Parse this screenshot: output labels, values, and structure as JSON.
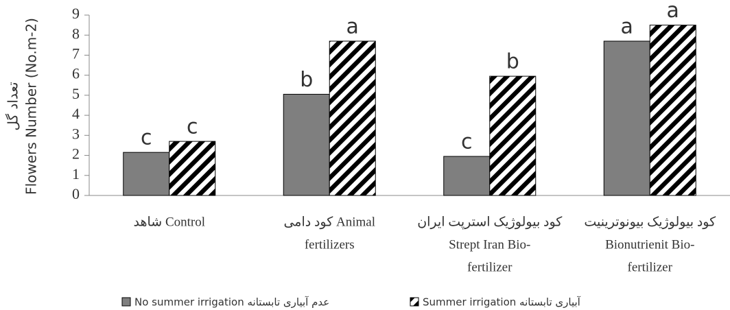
{
  "chart_data": {
    "type": "bar",
    "ylabel": [
      "تعداد گل",
      "Flowers Number (No.m-2)"
    ],
    "categories": [
      [
        "شاهد Control"
      ],
      [
        "کود دامی  Animal",
        "fertilizers"
      ],
      [
        "کود بیولوژیک استرپت ایران",
        "Strept Iran Bio-",
        "fertilizer"
      ],
      [
        "کود بیولوژیک بیونوترینیت",
        "Bionutrienit Bio-",
        "fertilizer"
      ]
    ],
    "series": [
      {
        "name": "No summer irrigation عدم آبیاری تابستانه",
        "color": "#7f7f7f",
        "pattern": "solid",
        "values": [
          2.15,
          5.05,
          1.95,
          7.7
        ],
        "letters": [
          "c",
          "b",
          "c",
          "a"
        ]
      },
      {
        "name": "Summer irrigation آبیاری تابستانه",
        "color": "#000000",
        "pattern": "diagonal",
        "values": [
          2.7,
          7.7,
          5.95,
          8.5
        ],
        "letters": [
          "c",
          "a",
          "b",
          "a"
        ]
      }
    ],
    "ylim": [
      0,
      9
    ],
    "yticks": [
      0,
      1,
      2,
      3,
      4,
      5,
      6,
      7,
      8,
      9
    ],
    "grid": false,
    "legend": "bottom"
  }
}
